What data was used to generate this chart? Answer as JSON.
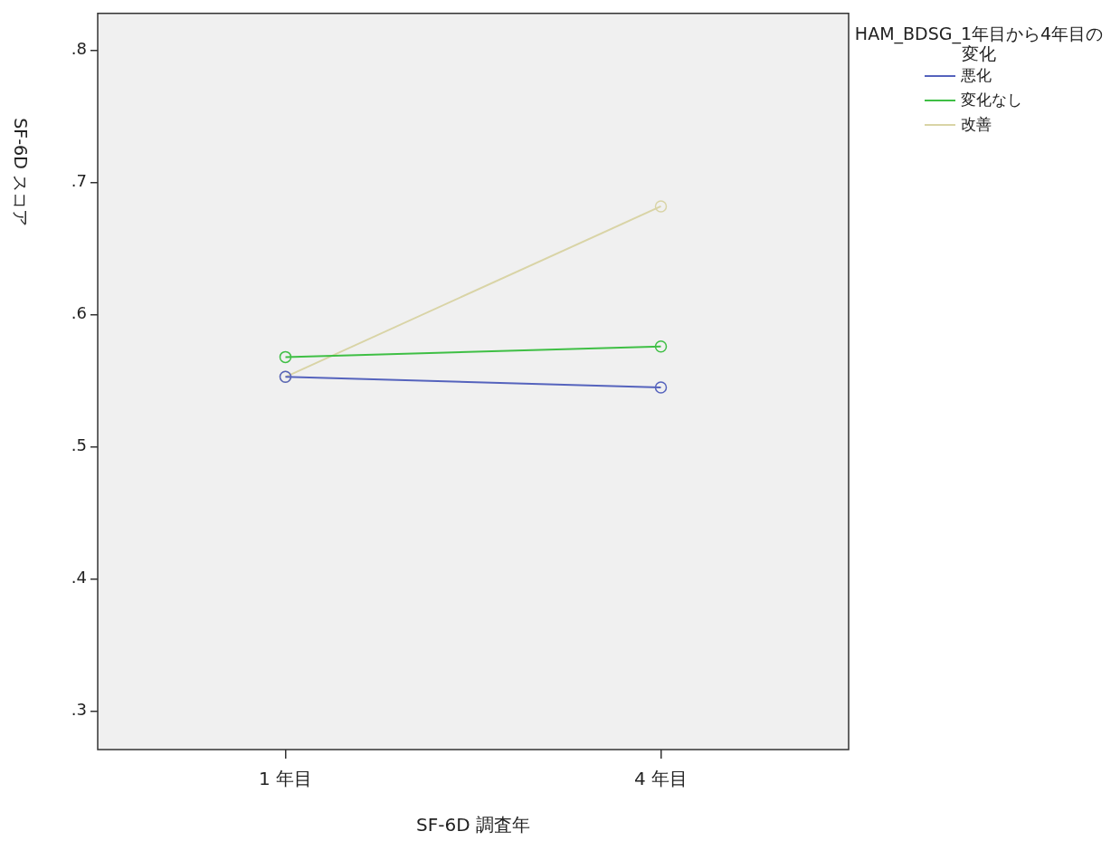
{
  "chart_data": {
    "type": "line",
    "xlabel": "SF-6D 調査年",
    "ylabel": "SF-6D スコア",
    "legend_title": "HAM_BDSG_1年目から4年目の変化",
    "categories": [
      "1 年目",
      "4 年目"
    ],
    "series": [
      {
        "name": "悪化",
        "color": "#5563bd",
        "values": [
          0.553,
          0.545
        ]
      },
      {
        "name": "変化なし",
        "color": "#3fbf45",
        "values": [
          0.568,
          0.576
        ]
      },
      {
        "name": "改善",
        "color": "#d9d4a6",
        "values": [
          0.553,
          0.682
        ]
      }
    ],
    "ylim": [
      0.271,
      0.828
    ],
    "yticks": [
      {
        "value": 0.3,
        "label": ".3"
      },
      {
        "value": 0.4,
        "label": ".4"
      },
      {
        "value": 0.5,
        "label": ".5"
      },
      {
        "value": 0.6,
        "label": ".6"
      },
      {
        "value": 0.7,
        "label": ".7"
      },
      {
        "value": 0.8,
        "label": ".8"
      }
    ],
    "legend": "top right",
    "marker": "circle",
    "grid": false,
    "line_style": "solid"
  }
}
